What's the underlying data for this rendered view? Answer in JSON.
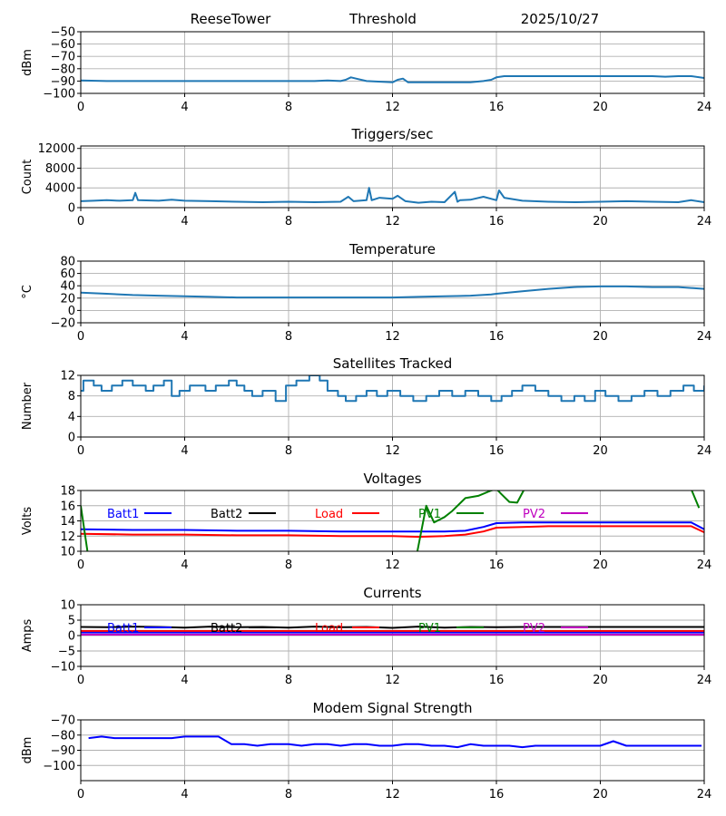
{
  "header": {
    "site": "ReeseTower",
    "metric": "Threshold",
    "date": "2025/10/27"
  },
  "x_axis": {
    "range": [
      0,
      24
    ],
    "ticks": [
      0,
      4,
      8,
      12,
      16,
      20,
      24
    ],
    "tick_labels": [
      "0",
      "4",
      "8",
      "12",
      "16",
      "20",
      "24"
    ]
  },
  "colors": {
    "series": "#1f77b4",
    "batt1": "#0000ff",
    "batt2": "#000000",
    "load": "#ff0000",
    "pv1": "#008000",
    "pv2": "#bf00bf",
    "grid": "#b0b0b0"
  },
  "chart_data": [
    {
      "id": "threshold",
      "type": "line",
      "title": "",
      "ylabel": "dBm",
      "ylim": [
        -100,
        -50
      ],
      "yticks": [
        -100,
        -90,
        -80,
        -70,
        -60,
        -50
      ],
      "ytick_labels": [
        "−100",
        "−90",
        "−80",
        "−70",
        "−60",
        "−50"
      ],
      "series": [
        {
          "name": "Threshold",
          "color": "#1f77b4",
          "x": [
            0,
            1,
            2,
            3,
            4,
            6,
            8,
            9,
            9.5,
            10,
            10.2,
            10.4,
            10.6,
            11,
            12,
            12.2,
            12.4,
            12.6,
            13,
            14,
            15,
            15.5,
            15.8,
            16,
            16.3,
            17,
            18,
            19,
            20,
            21,
            22,
            22.5,
            23,
            23.5,
            24
          ],
          "y": [
            -89.5,
            -90,
            -90,
            -90,
            -90,
            -90,
            -90,
            -90,
            -89.5,
            -90,
            -89,
            -87,
            -88,
            -90,
            -91,
            -89,
            -88,
            -91,
            -91,
            -91,
            -91,
            -90,
            -89,
            -87,
            -86,
            -86,
            -86,
            -86,
            -86,
            -86,
            -86,
            -86.5,
            -86,
            -86,
            -87.5
          ]
        }
      ]
    },
    {
      "id": "triggers",
      "type": "line",
      "title": "Triggers/sec",
      "ylabel": "Count",
      "ylim": [
        0,
        12500
      ],
      "yticks": [
        0,
        4000,
        8000,
        12000
      ],
      "ytick_labels": [
        "0",
        "4000",
        "8000",
        "12000"
      ],
      "series": [
        {
          "name": "Triggers",
          "color": "#1f77b4",
          "x": [
            0,
            0.5,
            1,
            1.5,
            2,
            2.1,
            2.2,
            3,
            3.5,
            4,
            5,
            6,
            7,
            8,
            9,
            10,
            10.3,
            10.5,
            11,
            11.1,
            11.2,
            11.5,
            12,
            12.2,
            12.5,
            13,
            13.5,
            14,
            14.4,
            14.5,
            14.6,
            15,
            15.5,
            16,
            16.1,
            16.3,
            17,
            18,
            19,
            20,
            21,
            22,
            23,
            23.5,
            24
          ],
          "y": [
            1300,
            1400,
            1500,
            1400,
            1500,
            3000,
            1500,
            1400,
            1600,
            1400,
            1300,
            1200,
            1100,
            1200,
            1100,
            1200,
            2200,
            1300,
            1500,
            4000,
            1500,
            2000,
            1800,
            2400,
            1300,
            1000,
            1200,
            1100,
            3200,
            1200,
            1500,
            1600,
            2200,
            1500,
            3500,
            2000,
            1400,
            1200,
            1100,
            1200,
            1300,
            1200,
            1100,
            1500,
            1100
          ]
        }
      ]
    },
    {
      "id": "temperature",
      "type": "line",
      "title": "Temperature",
      "ylabel": "°C",
      "ylim": [
        -20,
        80
      ],
      "yticks": [
        -20,
        0,
        20,
        40,
        60,
        80
      ],
      "ytick_labels": [
        "−20",
        "0",
        "20",
        "40",
        "60",
        "80"
      ],
      "series": [
        {
          "name": "Temperature",
          "color": "#1f77b4",
          "x": [
            0,
            1,
            2,
            3,
            4,
            5,
            6,
            8,
            10,
            12,
            13,
            14,
            15,
            15.8,
            16,
            17,
            18,
            19,
            20,
            21,
            22,
            23,
            24
          ],
          "y": [
            29,
            27,
            25,
            24,
            23,
            22,
            21,
            21,
            21,
            21,
            22,
            23,
            24,
            26,
            27,
            31,
            35,
            38,
            39,
            39,
            38,
            38,
            35
          ]
        }
      ]
    },
    {
      "id": "satellites",
      "type": "line",
      "step": true,
      "title": "Satellites Tracked",
      "ylabel": "Number",
      "ylim": [
        0,
        12
      ],
      "yticks": [
        0,
        4,
        8,
        12
      ],
      "ytick_labels": [
        "0",
        "4",
        "8",
        "12"
      ],
      "series": [
        {
          "name": "Satellites",
          "color": "#1f77b4",
          "x": [
            0,
            0.1,
            0.5,
            0.8,
            1.2,
            1.6,
            2,
            2.5,
            2.8,
            3.2,
            3.5,
            3.8,
            4.2,
            4.8,
            5.2,
            5.7,
            6,
            6.3,
            6.6,
            7,
            7.5,
            7.9,
            8.3,
            8.8,
            9.2,
            9.5,
            9.9,
            10.2,
            10.6,
            11,
            11.4,
            11.8,
            12.3,
            12.8,
            13.3,
            13.8,
            14.3,
            14.8,
            15.3,
            15.8,
            16.2,
            16.6,
            17,
            17.5,
            18,
            18.5,
            19,
            19.4,
            19.8,
            20.2,
            20.7,
            21.2,
            21.7,
            22.2,
            22.7,
            23.2,
            23.6,
            24
          ],
          "y": [
            9,
            11,
            10,
            9,
            10,
            11,
            10,
            9,
            10,
            11,
            8,
            9,
            10,
            9,
            10,
            11,
            10,
            9,
            8,
            9,
            7,
            10,
            11,
            12,
            11,
            9,
            8,
            7,
            8,
            9,
            8,
            9,
            8,
            7,
            8,
            9,
            8,
            9,
            8,
            7,
            8,
            9,
            10,
            9,
            8,
            7,
            8,
            7,
            9,
            8,
            7,
            8,
            9,
            8,
            9,
            10,
            9,
            10
          ]
        }
      ]
    },
    {
      "id": "voltages",
      "type": "line",
      "title": "Voltages",
      "ylabel": "Volts",
      "ylim": [
        10,
        18
      ],
      "yticks": [
        10,
        12,
        14,
        16,
        18
      ],
      "ytick_labels": [
        "10",
        "12",
        "14",
        "16",
        "18"
      ],
      "series": [
        {
          "name": "Batt1",
          "color": "#0000ff",
          "x": [
            0,
            2,
            4,
            6,
            8,
            10,
            12,
            14,
            14.8,
            15.5,
            16,
            17,
            18,
            20,
            22,
            23.5,
            24
          ],
          "y": [
            12.9,
            12.8,
            12.8,
            12.7,
            12.7,
            12.6,
            12.6,
            12.6,
            12.7,
            13.2,
            13.7,
            13.8,
            13.8,
            13.8,
            13.8,
            13.8,
            12.9
          ]
        },
        {
          "name": "Batt2",
          "color": "#000000",
          "x": [],
          "y": []
        },
        {
          "name": "Load",
          "color": "#ff0000",
          "x": [
            0,
            2,
            4,
            6,
            8,
            10,
            12,
            13,
            14,
            14.8,
            15.5,
            16,
            17,
            18,
            20,
            22,
            23.5,
            24
          ],
          "y": [
            12.3,
            12.2,
            12.2,
            12.1,
            12.1,
            12.0,
            12.0,
            11.9,
            12.0,
            12.2,
            12.6,
            13.1,
            13.2,
            13.3,
            13.3,
            13.3,
            13.3,
            12.5
          ]
        },
        {
          "name": "PV1",
          "color": "#008000",
          "x": [
            0,
            0.3,
            12.9,
            13.3,
            13.6,
            14,
            14.3,
            14.8,
            15.3,
            15.8,
            16,
            16.2,
            16.5,
            16.8,
            17.2,
            23.4,
            23.8
          ],
          "y": [
            16,
            9,
            9,
            16,
            13.8,
            14.5,
            15.3,
            17,
            17.3,
            18,
            18.2,
            17.5,
            16.5,
            16.4,
            19,
            19,
            15.7
          ]
        },
        {
          "name": "PV2",
          "color": "#bf00bf",
          "x": [],
          "y": []
        }
      ]
    },
    {
      "id": "currents",
      "type": "line",
      "title": "Currents",
      "ylabel": "Amps",
      "ylim": [
        -10,
        10
      ],
      "yticks": [
        -10,
        -5,
        0,
        5,
        10
      ],
      "ytick_labels": [
        "−10",
        "−5",
        "0",
        "5",
        "10"
      ],
      "series": [
        {
          "name": "Batt1",
          "color": "#0000ff",
          "x": [
            0,
            24
          ],
          "y": [
            1.0,
            1.0
          ]
        },
        {
          "name": "Batt2",
          "color": "#000000",
          "x": [
            0,
            1,
            2,
            3,
            4,
            5,
            6,
            7,
            8,
            9,
            10,
            11,
            12,
            13,
            14,
            15,
            16,
            17,
            18,
            19,
            20,
            21,
            22,
            23,
            24
          ],
          "y": [
            2.8,
            2.7,
            2.9,
            2.8,
            2.6,
            2.9,
            2.7,
            2.8,
            2.6,
            2.9,
            2.7,
            2.8,
            2.5,
            2.9,
            2.6,
            2.8,
            2.7,
            2.8,
            2.8,
            2.8,
            2.8,
            2.8,
            2.8,
            2.8,
            2.8
          ]
        },
        {
          "name": "Load",
          "color": "#ff0000",
          "x": [
            0,
            24
          ],
          "y": [
            1.5,
            1.5
          ]
        },
        {
          "name": "PV1",
          "color": "#008000",
          "x": [],
          "y": []
        },
        {
          "name": "PV2",
          "color": "#bf00bf",
          "x": [
            0,
            24
          ],
          "y": [
            0.3,
            0.3
          ]
        }
      ]
    },
    {
      "id": "modem",
      "type": "line",
      "title": "Modem Signal Strength",
      "ylabel": "dBm",
      "ylim": [
        -110,
        -70
      ],
      "yticks": [
        -100,
        -90,
        -80,
        -70
      ],
      "ytick_labels": [
        "−100",
        "−90",
        "−80",
        "−70"
      ],
      "series": [
        {
          "name": "Modem",
          "color": "#0000ff",
          "x": [
            0.3,
            0.8,
            1.3,
            2,
            3,
            3.5,
            4,
            4.5,
            5,
            5.3,
            5.8,
            6.3,
            6.8,
            7.3,
            8,
            8.5,
            9,
            9.5,
            10,
            10.5,
            11,
            11.5,
            12,
            12.5,
            13,
            13.5,
            14,
            14.5,
            15,
            15.5,
            16,
            16.5,
            17,
            17.5,
            18,
            18.5,
            19,
            19.5,
            20,
            20.5,
            21,
            21.5,
            22,
            22.5,
            23,
            23.5,
            23.9
          ],
          "y": [
            -82,
            -81,
            -82,
            -82,
            -82,
            -82,
            -81,
            -81,
            -81,
            -81,
            -86,
            -86,
            -87,
            -86,
            -86,
            -87,
            -86,
            -86,
            -87,
            -86,
            -86,
            -87,
            -87,
            -86,
            -86,
            -87,
            -87,
            -88,
            -86,
            -87,
            -87,
            -87,
            -88,
            -87,
            -87,
            -87,
            -87,
            -87,
            -87,
            -84,
            -87,
            -87,
            -87,
            -87,
            -87,
            -87,
            -87
          ]
        }
      ]
    }
  ]
}
